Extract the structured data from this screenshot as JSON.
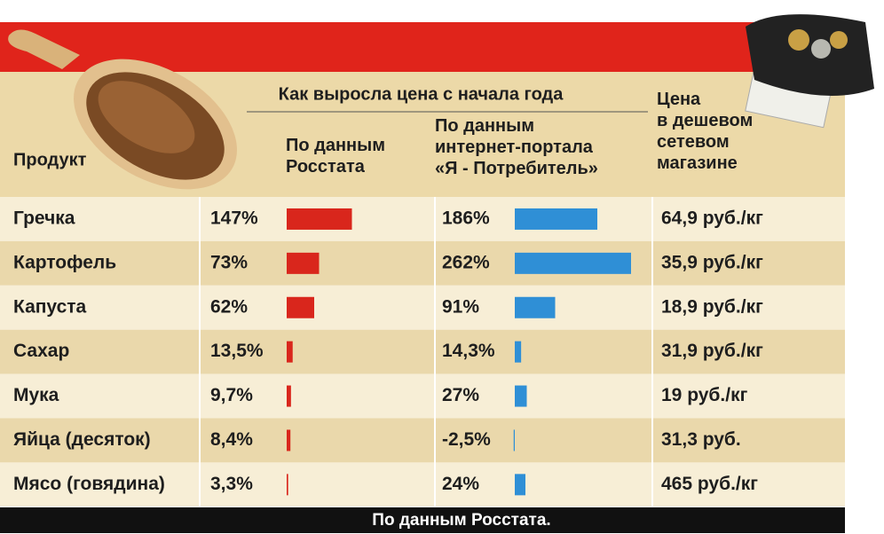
{
  "chart_data": {
    "type": "bar-table",
    "product_header": "Продукт",
    "group_header": "Как выросла цена с начала года",
    "price_header": "Цена\nв дешевом\nсетевом\nмагазине",
    "categories": [
      "Гречка",
      "Картофель",
      "Капуста",
      "Сахар",
      "Мука",
      "Яйца (десяток)",
      "Мясо (говядина)"
    ],
    "series": [
      {
        "name": "По данным\nРосстата",
        "color": "#d9261c",
        "values": [
          147,
          73,
          62,
          13.5,
          9.7,
          8.4,
          3.3
        ],
        "value_labels": [
          "147%",
          "73%",
          "62%",
          "13,5%",
          "9,7%",
          "8,4%",
          "3,3%"
        ]
      },
      {
        "name": "По данным\nинтернет-портала\n«Я - Потребитель»",
        "color": "#2f8fd6",
        "values": [
          186,
          262,
          91,
          14.3,
          27,
          -2.5,
          24
        ],
        "value_labels": [
          "186%",
          "262%",
          "91%",
          "14,3%",
          "27%",
          "-2,5%",
          "24%"
        ]
      }
    ],
    "prices": [
      "64,9 руб./кг",
      "35,9 руб./кг",
      "18,9 руб./кг",
      "31,9 руб./кг",
      "19 руб./кг",
      "31,3 руб.",
      "465 руб./кг"
    ],
    "footer": "По данным Росстата."
  }
}
